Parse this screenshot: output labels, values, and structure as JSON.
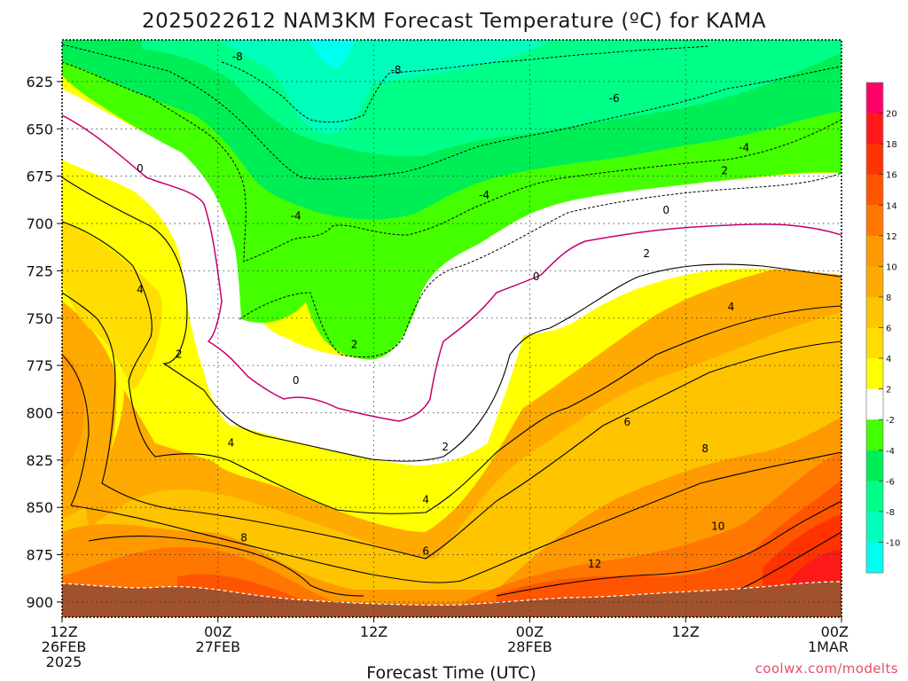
{
  "title": "2025022612 NAM3KM Forecast Temperature (ºC) for KAMA",
  "credit": "coolwx.com/modelts",
  "chart_data": {
    "type": "heatmap",
    "subtype": "time-height filled contour",
    "xlabel": "Forecast Time (UTC)",
    "ylabel": "",
    "x_ticks": [
      {
        "line1": "12Z",
        "line2": "26FEB",
        "line3": "2025"
      },
      {
        "line1": "00Z",
        "line2": "27FEB",
        "line3": ""
      },
      {
        "line1": "12Z",
        "line2": "",
        "line3": ""
      },
      {
        "line1": "00Z",
        "line2": "28FEB",
        "line3": ""
      },
      {
        "line1": "12Z",
        "line2": "",
        "line3": ""
      },
      {
        "line1": "00Z",
        "line2": "1MAR",
        "line3": ""
      }
    ],
    "x_range_hours": [
      0,
      60
    ],
    "y_ticks": [
      "625",
      "650",
      "675",
      "700",
      "725",
      "750",
      "775",
      "800",
      "825",
      "850",
      "875",
      "900"
    ],
    "y_range_hPa": [
      603,
      908
    ],
    "y_grid_dotted": true,
    "x_grid_dotted": true,
    "terrain_color": "#a0522d",
    "colorbar_ticks": [
      "20",
      "18",
      "16",
      "14",
      "12",
      "10",
      "8",
      "6",
      "4",
      "2",
      "-2",
      "-4",
      "-6",
      "-8",
      "-10"
    ],
    "colorbar_colors": [
      "#ff0066",
      "#ff1a1a",
      "#ff3300",
      "#ff5500",
      "#ff7700",
      "#ff9900",
      "#ffaa00",
      "#ffc400",
      "#ffdd00",
      "#ffff00",
      "#ffffff",
      "#44ff00",
      "#00ee55",
      "#00ff88",
      "#00ffbb",
      "#00ffee"
    ],
    "contour_labels": [
      {
        "text": "-8",
        "t": 13.5,
        "p": 612
      },
      {
        "text": "-8",
        "t": 25.7,
        "p": 619
      },
      {
        "text": "-6",
        "t": 42.5,
        "p": 634
      },
      {
        "text": "-4",
        "t": 52.5,
        "p": 660
      },
      {
        "text": "2",
        "t": 51.0,
        "p": 672
      },
      {
        "text": "-4",
        "t": 18.0,
        "p": 696
      },
      {
        "text": "-4",
        "t": 32.5,
        "p": 685
      },
      {
        "text": "0",
        "t": 6.0,
        "p": 671
      },
      {
        "text": "0",
        "t": 46.5,
        "p": 693
      },
      {
        "text": "2",
        "t": 45.0,
        "p": 716
      },
      {
        "text": "0",
        "t": 36.5,
        "p": 728
      },
      {
        "text": "4",
        "t": 6.0,
        "p": 735
      },
      {
        "text": "4",
        "t": 51.5,
        "p": 744
      },
      {
        "text": "2",
        "t": 9.0,
        "p": 769
      },
      {
        "text": "2",
        "t": 22.5,
        "p": 764
      },
      {
        "text": "0",
        "t": 18.0,
        "p": 783
      },
      {
        "text": "6",
        "t": 43.5,
        "p": 805
      },
      {
        "text": "4",
        "t": 13.0,
        "p": 816
      },
      {
        "text": "2",
        "t": 29.5,
        "p": 818
      },
      {
        "text": "8",
        "t": 49.5,
        "p": 819
      },
      {
        "text": "4",
        "t": 28.0,
        "p": 846
      },
      {
        "text": "10",
        "t": 50.5,
        "p": 860
      },
      {
        "text": "8",
        "t": 14.0,
        "p": 866
      },
      {
        "text": "6",
        "t": 28.0,
        "p": 873
      },
      {
        "text": "12",
        "t": 41.0,
        "p": 880
      }
    ]
  }
}
